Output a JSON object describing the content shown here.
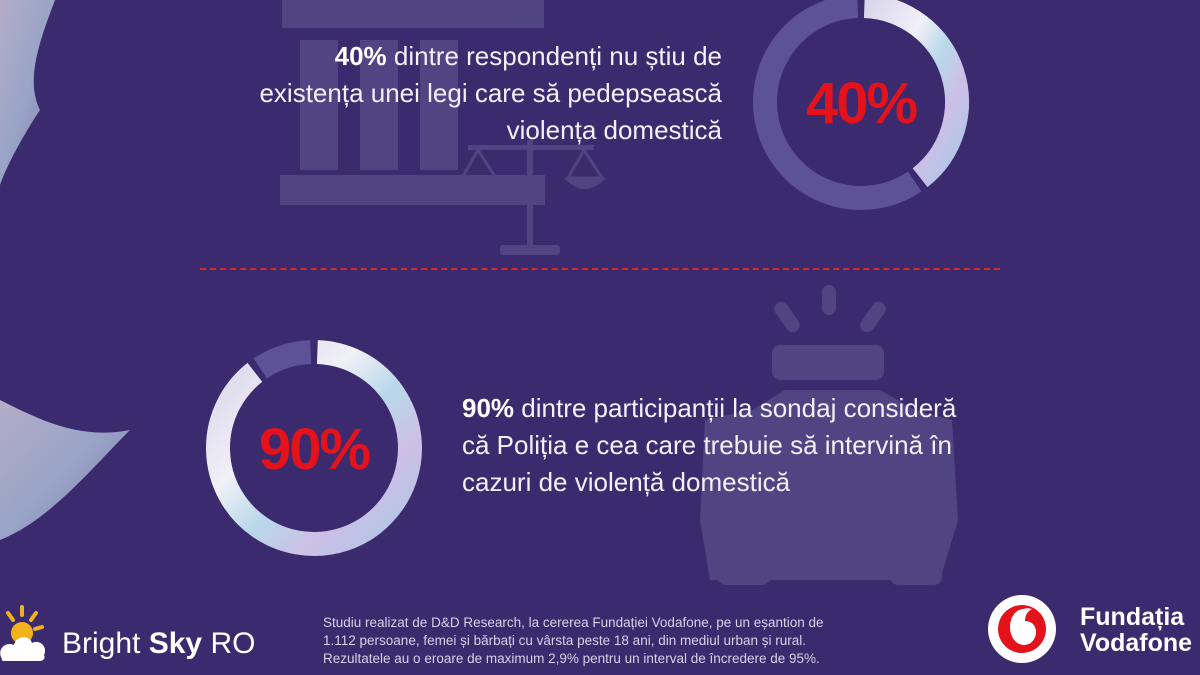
{
  "stat1": {
    "bold": "40%",
    "line1_rest": " dintre respondenți nu știu de",
    "line2": "existența unei legi care să pedepsească",
    "line3": "violența domestică"
  },
  "stat2": {
    "bold": "90%",
    "line1_rest": " dintre participanții la sondaj consideră",
    "line2": "că Poliția e cea care trebuie să intervină în",
    "line3": "cazuri de violență domestică"
  },
  "chart_data": [
    {
      "type": "pie",
      "values": [
        40,
        60
      ],
      "center_label": "40%"
    },
    {
      "type": "pie",
      "values": [
        90,
        10
      ],
      "center_label": "90%"
    }
  ],
  "footnote": {
    "line1": "Studiu realizat de D&D Research, la cererea Fundației Vodafone, pe un eșantion de",
    "line2": "1.112 persoane, femei și bărbați cu vârsta peste 18 ani, din mediul urban și rural.",
    "line3": "Rezultatele au o eroare de maximum 2,9% pentru un interval de încredere de 95%."
  },
  "brand_left": {
    "part1": "Bright ",
    "part2": "Sky",
    "part3": " RO"
  },
  "brand_right": {
    "line1": "Fundația",
    "line2": "Vodafone"
  },
  "colors": {
    "background": "#3b2a6e",
    "accent_red": "#e3121b",
    "divider": "#d42a2a"
  },
  "icons": [
    "scales-of-justice-icon",
    "police-car-icon",
    "vodafone-logo-icon",
    "bright-sky-logo-icon"
  ]
}
